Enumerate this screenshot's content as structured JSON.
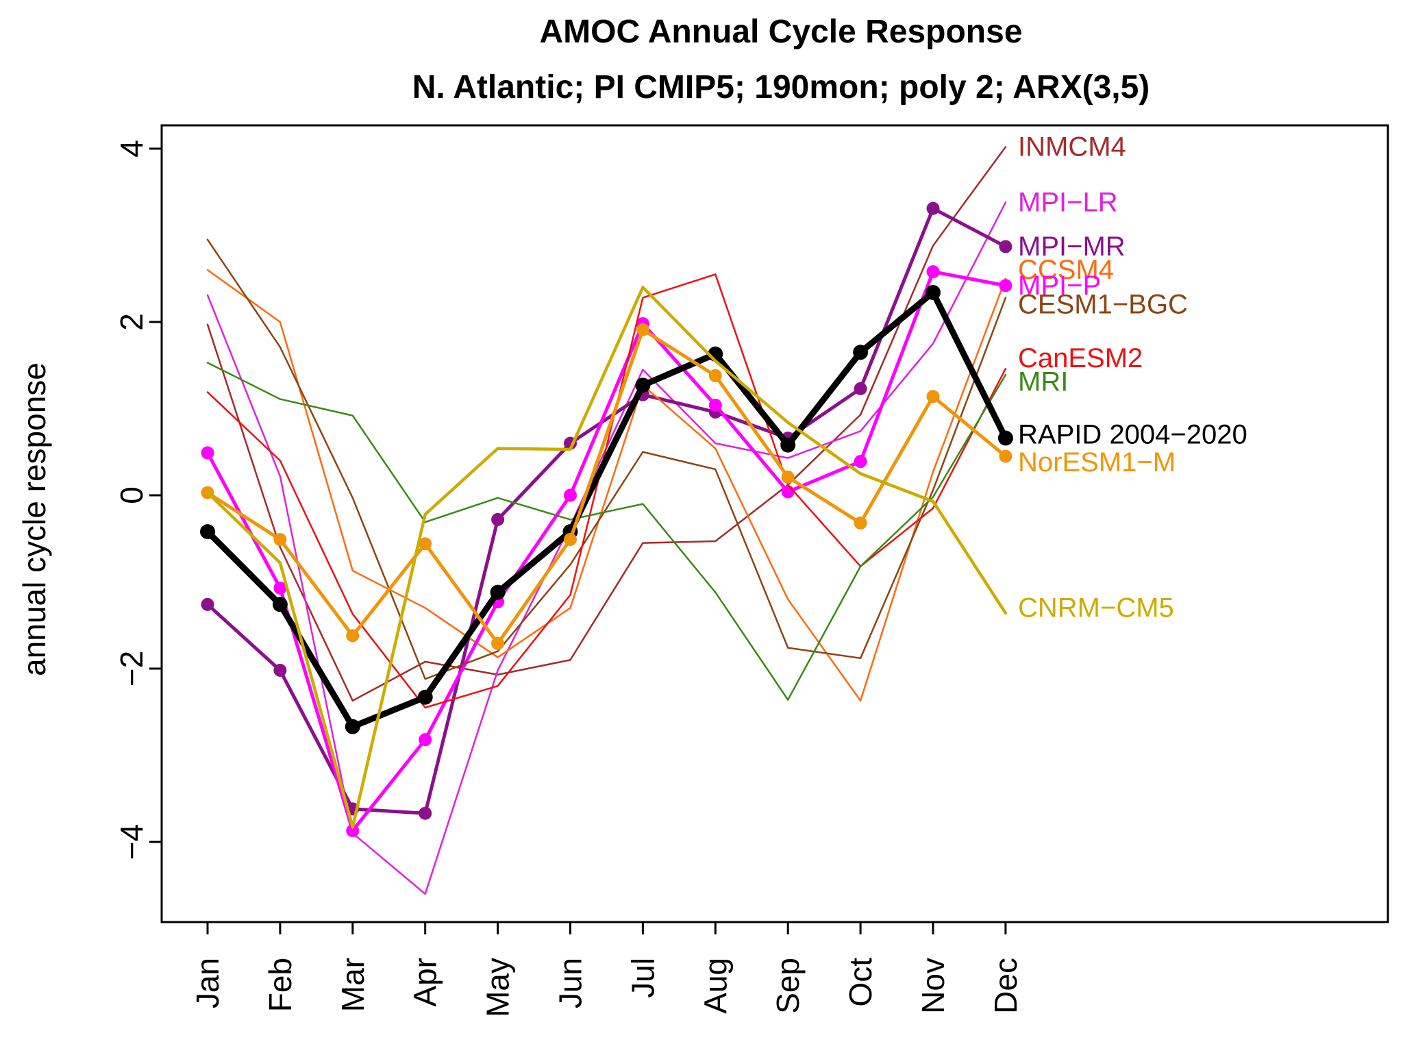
{
  "chart_data": {
    "type": "line",
    "title": "AMOC Annual Cycle Response",
    "subtitle": "N. Atlantic; PI CMIP5; 190mon; poly 2; ARX(3,5)",
    "xlabel": "",
    "ylabel": "annual cycle response",
    "categories": [
      "Jan",
      "Feb",
      "Mar",
      "Apr",
      "May",
      "Jun",
      "Jul",
      "Aug",
      "Sep",
      "Oct",
      "Nov",
      "Dec"
    ],
    "yticks": [
      -4,
      -2,
      0,
      2,
      4
    ],
    "ylim": [
      -4.9,
      4.4
    ],
    "grid": false,
    "legend": "direct labels at right end of lines",
    "series": [
      {
        "name": "INMCM4",
        "color": "#a52a2a",
        "lw": 2.5,
        "marker": false,
        "values": [
          1.97,
          -0.6,
          -2.37,
          -1.92,
          -2.07,
          -1.9,
          -0.55,
          -0.53,
          0.12,
          0.93,
          2.88,
          4.02
        ]
      },
      {
        "name": "MPI-LR",
        "color": "#dd22dd",
        "lw": 2.5,
        "marker": false,
        "values": [
          2.31,
          0.22,
          -3.9,
          -4.6,
          -2.02,
          -0.35,
          1.45,
          0.6,
          0.43,
          0.74,
          1.75,
          3.38
        ]
      },
      {
        "name": "MPI-MR",
        "color": "#8b108b",
        "lw": 5,
        "marker": true,
        "values": [
          -1.26,
          -2.02,
          -3.62,
          -3.67,
          -0.28,
          0.6,
          1.16,
          0.96,
          0.66,
          1.23,
          3.31,
          2.87
        ]
      },
      {
        "name": "CCSM4",
        "color": "#ff6a0f",
        "lw": 2.5,
        "marker": false,
        "values": [
          2.6,
          2.0,
          -0.87,
          -1.3,
          -1.87,
          -1.3,
          1.27,
          0.54,
          -1.2,
          -2.37,
          0.27,
          2.5
        ]
      },
      {
        "name": "MPI-P",
        "color": "#ff00ff",
        "lw": 5,
        "marker": true,
        "values": [
          0.49,
          -1.07,
          -3.87,
          -2.82,
          -1.23,
          0.0,
          1.98,
          1.04,
          0.04,
          0.39,
          2.58,
          2.42
        ]
      },
      {
        "name": "CESM1-BGC",
        "color": "#8b4513",
        "lw": 2.5,
        "marker": false,
        "values": [
          2.95,
          1.71,
          -0.03,
          -2.12,
          -1.8,
          -0.8,
          0.5,
          0.3,
          -1.76,
          -1.88,
          0.06,
          2.28
        ]
      },
      {
        "name": "CanESM2",
        "color": "#ee1111",
        "lw": 2.5,
        "marker": false,
        "values": [
          1.19,
          0.4,
          -1.37,
          -2.45,
          -2.2,
          -1.15,
          2.28,
          2.55,
          0.12,
          -0.82,
          -0.15,
          1.46
        ]
      },
      {
        "name": "MRI",
        "color": "#3a8a14",
        "lw": 2.5,
        "marker": false,
        "values": [
          1.53,
          1.11,
          0.92,
          -0.31,
          -0.03,
          -0.28,
          -0.1,
          -1.12,
          -2.36,
          -0.82,
          -0.02,
          1.39
        ]
      },
      {
        "name": "RAPID 2004−2020",
        "color": "#000000",
        "lw": 9,
        "marker": true,
        "values": [
          -0.42,
          -1.26,
          -2.67,
          -2.33,
          -1.12,
          -0.42,
          1.27,
          1.63,
          0.58,
          1.65,
          2.34,
          0.66
        ]
      },
      {
        "name": "NorESM1−M",
        "color": "#f0950a",
        "lw": 5,
        "marker": true,
        "values": [
          0.03,
          -0.51,
          -1.62,
          -0.56,
          -1.71,
          -0.51,
          1.91,
          1.38,
          0.21,
          -0.32,
          1.14,
          0.45
        ]
      },
      {
        "name": "CNRM−CM5",
        "color": "#ccac00",
        "lw": 4.5,
        "marker": false,
        "values": [
          0.03,
          -0.78,
          -3.83,
          -0.22,
          0.54,
          0.53,
          2.4,
          1.55,
          0.84,
          0.25,
          -0.07,
          -1.36
        ]
      }
    ],
    "labels": [
      {
        "text": "INMCM4",
        "color": "#a52a2a",
        "y": 4.02
      },
      {
        "text": "MPI−LR",
        "color": "#dd22dd",
        "y": 3.38
      },
      {
        "text": "MPI−MR",
        "color": "#8b108b",
        "y": 2.87
      },
      {
        "text": "CCSM4",
        "color": "#ff6a0f",
        "y": 2.6
      },
      {
        "text": "MPI−P",
        "color": "#ff00ff",
        "y": 2.42
      },
      {
        "text": "CESM1−BGC",
        "color": "#8b4513",
        "y": 2.2
      },
      {
        "text": "CanESM2",
        "color": "#ee1111",
        "y": 1.58
      },
      {
        "text": "MRI",
        "color": "#3a8a14",
        "y": 1.31
      },
      {
        "text": "RAPID 2004−2020",
        "color": "#000000",
        "y": 0.7
      },
      {
        "text": "NorESM1−M",
        "color": "#f0950a",
        "y": 0.38
      },
      {
        "text": "CNRM−CM5",
        "color": "#ccac00",
        "y": -1.3
      }
    ]
  }
}
